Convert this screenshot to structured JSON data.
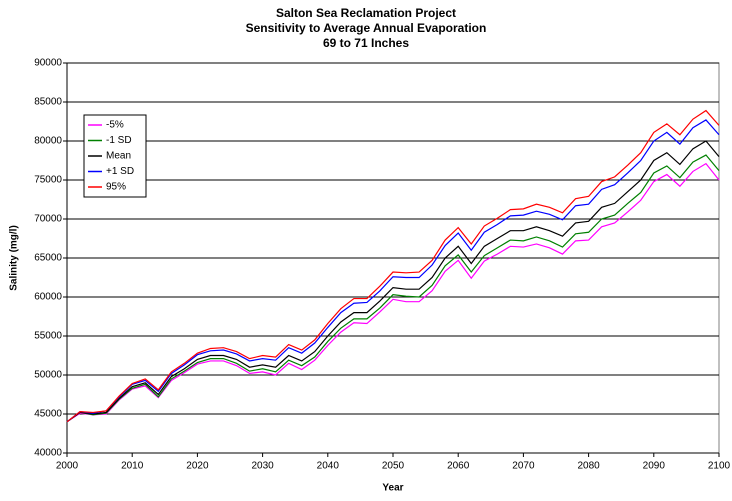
{
  "chart_data": {
    "type": "line",
    "title": [
      "Salton Sea Reclamation Project",
      "Sensitivity to Average Annual Evaporation",
      "69 to 71 Inches"
    ],
    "xlabel": "Year",
    "ylabel": "Salinity (mg/l)",
    "x": [
      2000,
      2002,
      2004,
      2006,
      2008,
      2010,
      2012,
      2014,
      2016,
      2018,
      2020,
      2022,
      2024,
      2026,
      2028,
      2030,
      2032,
      2034,
      2036,
      2038,
      2040,
      2042,
      2044,
      2046,
      2048,
      2050,
      2052,
      2054,
      2056,
      2058,
      2060,
      2062,
      2064,
      2066,
      2068,
      2070,
      2072,
      2074,
      2076,
      2078,
      2080,
      2082,
      2084,
      2086,
      2088,
      2090,
      2092,
      2094,
      2096,
      2098,
      2100
    ],
    "series": [
      {
        "name": "-5%",
        "color": "#ff00ff",
        "values": [
          44000,
          45100,
          44900,
          45000,
          46800,
          48200,
          48600,
          47100,
          49300,
          50300,
          51400,
          51800,
          51800,
          51200,
          50200,
          50400,
          50000,
          51500,
          50700,
          51900,
          53800,
          55500,
          56700,
          56600,
          58100,
          59700,
          59400,
          59400,
          60800,
          63300,
          64700,
          62400,
          64600,
          65500,
          66500,
          66400,
          66800,
          66300,
          65500,
          67200,
          67300,
          69000,
          69500,
          70900,
          72400,
          74800,
          75700,
          74200,
          76100,
          77100,
          75000
        ]
      },
      {
        "name": "-1 SD",
        "color": "#008000",
        "values": [
          44000,
          45200,
          44900,
          45100,
          46900,
          48300,
          48800,
          47200,
          49500,
          50500,
          51600,
          52100,
          52100,
          51500,
          50500,
          50800,
          50400,
          51900,
          51200,
          52300,
          54300,
          56000,
          57200,
          57200,
          58600,
          60300,
          60100,
          60000,
          61500,
          64000,
          65400,
          63200,
          65300,
          66300,
          67300,
          67200,
          67700,
          67200,
          66400,
          68100,
          68300,
          70000,
          70500,
          72000,
          73400,
          75900,
          76800,
          75300,
          77300,
          78200,
          76200
        ]
      },
      {
        "name": "Mean",
        "color": "#000000",
        "values": [
          44000,
          45200,
          45000,
          45200,
          47000,
          48500,
          49000,
          47500,
          49800,
          50800,
          52000,
          52500,
          52500,
          52000,
          51000,
          51300,
          51000,
          52500,
          51800,
          53000,
          55000,
          56800,
          58000,
          58000,
          59500,
          61200,
          61000,
          61000,
          62500,
          65000,
          66500,
          64300,
          66500,
          67500,
          68500,
          68500,
          69000,
          68500,
          67800,
          69500,
          69700,
          71500,
          72000,
          73500,
          75000,
          77500,
          78500,
          77000,
          79000,
          80000,
          78000
        ]
      },
      {
        "name": "+1 SD",
        "color": "#0000ff",
        "values": [
          44000,
          45300,
          45100,
          45400,
          47200,
          48800,
          49300,
          47900,
          50200,
          51300,
          52600,
          53100,
          53200,
          52700,
          51800,
          52100,
          51900,
          53500,
          52800,
          54100,
          56100,
          58000,
          59200,
          59300,
          60800,
          62600,
          62500,
          62500,
          64100,
          66600,
          68200,
          66000,
          68300,
          69300,
          70400,
          70500,
          71000,
          70600,
          69900,
          71700,
          71900,
          73800,
          74400,
          75900,
          77500,
          80000,
          81100,
          79600,
          81700,
          82700,
          80800
        ]
      },
      {
        "name": "95%",
        "color": "#ff0000",
        "values": [
          44000,
          45300,
          45200,
          45400,
          47300,
          48900,
          49500,
          48100,
          50400,
          51500,
          52800,
          53400,
          53500,
          53000,
          52100,
          52500,
          52300,
          53900,
          53200,
          54500,
          56600,
          58500,
          59800,
          59800,
          61400,
          63200,
          63100,
          63200,
          64700,
          67300,
          68900,
          66800,
          69100,
          70100,
          71200,
          71300,
          71900,
          71500,
          70800,
          72600,
          72900,
          74800,
          75400,
          76900,
          78500,
          81100,
          82200,
          80800,
          82800,
          83900,
          82000
        ]
      }
    ],
    "xlim": [
      2000,
      2100
    ],
    "xticks": [
      2000,
      2010,
      2020,
      2030,
      2040,
      2050,
      2060,
      2070,
      2080,
      2090,
      2100
    ],
    "ylim": [
      40000,
      90000
    ],
    "yticks": [
      40000,
      45000,
      50000,
      55000,
      60000,
      65000,
      70000,
      75000,
      80000,
      85000,
      90000
    ],
    "grid": true,
    "legend": "upper left"
  }
}
